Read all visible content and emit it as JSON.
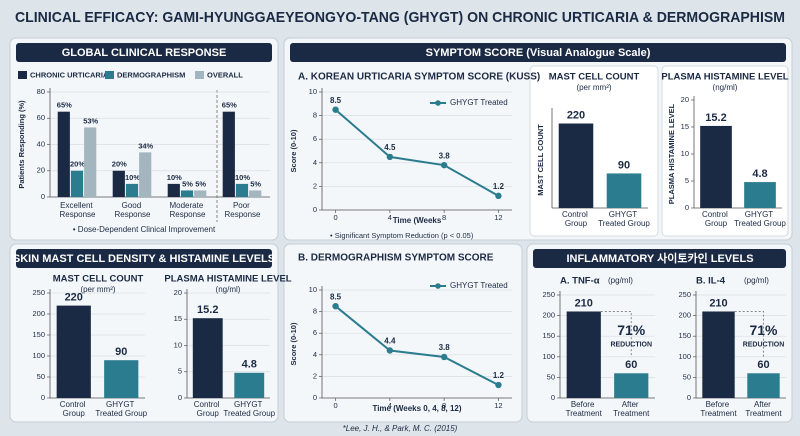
{
  "title": "CLINICAL EFFICACY: GAMI-HYUNGGAEYEONGYO-TANG (GHYGT) ON CHRONIC URTICARIA & DERMOGRAPHISM",
  "footnote": "*Lee, J. H., & Park, M. C. (2015)",
  "panels": [
    "GLOBAL CLINICAL RESPONSE",
    "SYMPTOM SCORE (Visual Analogue Scale)",
    "SKIN MAST CELL DENSITY & HISTAMINE LEVELS",
    "INFLAMMATORY 사이토카인 LEVELS"
  ],
  "chart_data": [
    {
      "type": "grouped_bar",
      "y_label": "Patients Responding (%)",
      "categories": [
        "Excellent Response",
        "Good Response",
        "Moderate Response",
        "Poor Response"
      ],
      "series": [
        {
          "name": "CHRONIC URTICARIA",
          "color": "#1b2a44",
          "values": [
            65,
            20,
            10,
            65
          ],
          "value_labels": [
            "65%",
            "20%",
            "10%",
            "65%"
          ]
        },
        {
          "name": "DERMOGRAPHISM",
          "color": "#2b7c8f",
          "values": [
            20,
            10,
            5,
            10
          ],
          "value_labels": [
            "20%",
            "10%",
            "5%",
            "10%"
          ]
        },
        {
          "name": "OVERALL",
          "color": "#a3b5be",
          "values": [
            53,
            34,
            5,
            5
          ],
          "value_labels": [
            "53%",
            "34%",
            "5%",
            "5%"
          ]
        }
      ],
      "ylim": [
        0,
        80
      ],
      "yticks": [
        0,
        20,
        40,
        60,
        80
      ],
      "grid": true,
      "annotation": "• Dose-Dependent Clinical Improvement"
    },
    {
      "type": "line",
      "title": "A. KOREAN URTICARIA SYMPTOM SCORE (KUSS)",
      "x_label": "Time (Weeks",
      "y_label": "Score (0-10)",
      "x": [
        0,
        4,
        8,
        12
      ],
      "series": [
        {
          "name": "GHYGT Treated",
          "color": "#2b7c8f",
          "values": [
            8.5,
            4.5,
            3.8,
            1.2
          ]
        }
      ],
      "xlim": [
        -1,
        13
      ],
      "xticks": [
        0,
        4,
        8,
        12
      ],
      "ylim": [
        0,
        10
      ],
      "yticks": [
        0,
        2,
        4,
        6,
        8,
        10
      ],
      "grid": true,
      "annotation": "• Significant Symptom Reduction (p < 0.05)"
    },
    {
      "type": "line",
      "title": "B. DERMOGRAPHISM SYMPTOM SCORE",
      "x_label": "Time (Weeks 0, 4, 8, 12)",
      "y_label": "Score (0-10)",
      "x": [
        0,
        4,
        8,
        12
      ],
      "series": [
        {
          "name": "GHYGT Treated",
          "color": "#2b7c8f",
          "values": [
            8.5,
            4.4,
            3.8,
            1.2
          ]
        }
      ],
      "xlim": [
        -1,
        13
      ],
      "xticks": [
        0,
        4,
        8,
        12
      ],
      "ylim": [
        0,
        10
      ],
      "yticks": [
        0,
        2,
        4,
        6,
        8,
        10
      ],
      "grid": true
    },
    {
      "type": "bar",
      "title": "MAST CELL COUNT",
      "unit": "(per mm²)",
      "y_label": "MAST CELL COUNT",
      "categories": [
        "Control Group",
        "GHYGT Treated Group"
      ],
      "values": [
        220,
        90
      ],
      "colors": [
        "#1b2a44",
        "#2b7c8f"
      ],
      "ylim": [
        0,
        250
      ],
      "grid": false
    },
    {
      "type": "bar",
      "title": "PLASMA HISTAMINE LEVEL",
      "unit": "(ng/ml)",
      "y_label": "PLASMA HISTAMINE LEVEL",
      "categories": [
        "Control Group",
        "GHYGT Treated Group"
      ],
      "values": [
        15.2,
        4.8
      ],
      "colors": [
        "#1b2a44",
        "#2b7c8f"
      ],
      "ylim": [
        0,
        20
      ],
      "yticks": [
        0,
        5,
        10,
        15,
        20
      ],
      "grid": false
    },
    {
      "type": "bar",
      "title": "MAST CELL COUNT",
      "unit": "(per mm²)",
      "categories": [
        "Control Group",
        "GHYGT Treated Group"
      ],
      "values": [
        220,
        90
      ],
      "colors": [
        "#1b2a44",
        "#2b7c8f"
      ],
      "ylim": [
        0,
        250
      ],
      "yticks": [
        0,
        50,
        100,
        150,
        200,
        250
      ],
      "grid": true
    },
    {
      "type": "bar",
      "title": "PLASMA HISTAMINE LEVEL",
      "unit": "(ng/ml)",
      "categories": [
        "Control Group",
        "GHYGT Treated Group"
      ],
      "values": [
        15.2,
        4.8
      ],
      "colors": [
        "#1b2a44",
        "#2b7c8f"
      ],
      "ylim": [
        0,
        20
      ],
      "yticks": [
        0,
        5,
        10,
        15,
        20
      ],
      "grid": true
    },
    {
      "type": "bar",
      "title": "A. TNF-α",
      "unit": "(pg/ml)",
      "categories": [
        "Before Treatment",
        "After Treatment"
      ],
      "values": [
        210,
        60
      ],
      "colors": [
        "#1b2a44",
        "#2b7c8f"
      ],
      "ylim": [
        0,
        250
      ],
      "yticks": [
        0,
        50,
        100,
        150,
        200,
        250
      ],
      "grid": true,
      "annotation": "71%",
      "annotation_sub": "REDUCTION"
    },
    {
      "type": "bar",
      "title": "B. IL-4",
      "unit": "(pg/ml)",
      "categories": [
        "Before Treatment",
        "After Treatment"
      ],
      "values": [
        210,
        60
      ],
      "colors": [
        "#1b2a44",
        "#2b7c8f"
      ],
      "ylim": [
        0,
        250
      ],
      "yticks": [
        0,
        50,
        100,
        150,
        200,
        250
      ],
      "grid": true,
      "annotation": "71%",
      "annotation_sub": "REDUCTION"
    }
  ]
}
